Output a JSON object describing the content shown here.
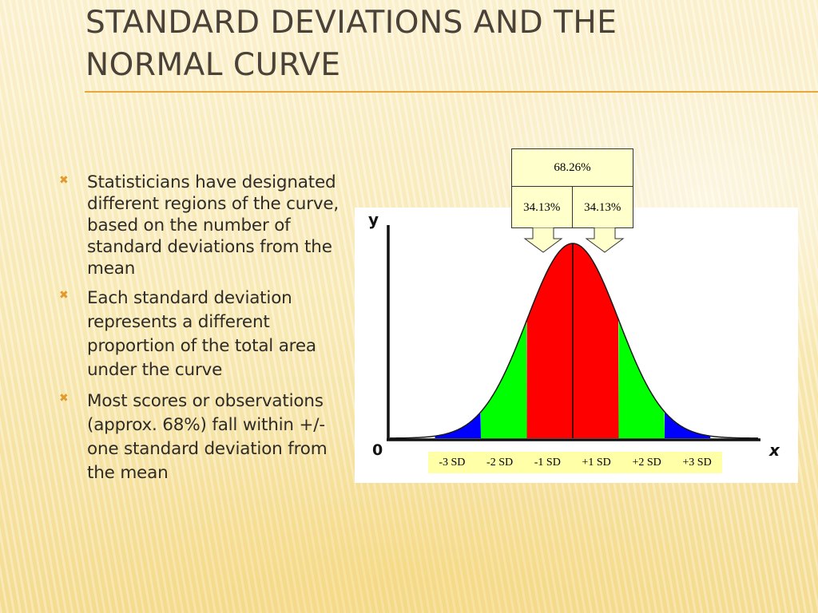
{
  "title_lines": [
    "STANDARD DEVIATIONS AND THE",
    "NORMAL CURVE"
  ],
  "bullet_marker": "✖",
  "bullets": [
    "Statisticians have designated different regions of the curve, based on the number of standard deviations from the mean",
    "Each standard deviation represents a different proportion of the total area under the curve",
    "Most scores or observations (approx. 68%) fall within +/- one standard deviation from the mean"
  ],
  "diagram": {
    "y_axis_label": "y",
    "x_axis_label": "x",
    "origin_label": "0",
    "sd_labels": [
      "-3 SD",
      "-2 SD",
      "-1 SD",
      "+1 SD",
      "+2 SD",
      "+3 SD"
    ],
    "total_pct": "68.26%",
    "left_pct": "34.13%",
    "right_pct": "34.13%",
    "band_colors": {
      "within_1sd": "#ff0000",
      "within_2sd": "#00ff00",
      "within_3sd": "#0000ff",
      "tails": "#ffffff"
    },
    "callout_fill": "#ffffcc",
    "sd_strip_fill": "#ffffa8"
  }
}
